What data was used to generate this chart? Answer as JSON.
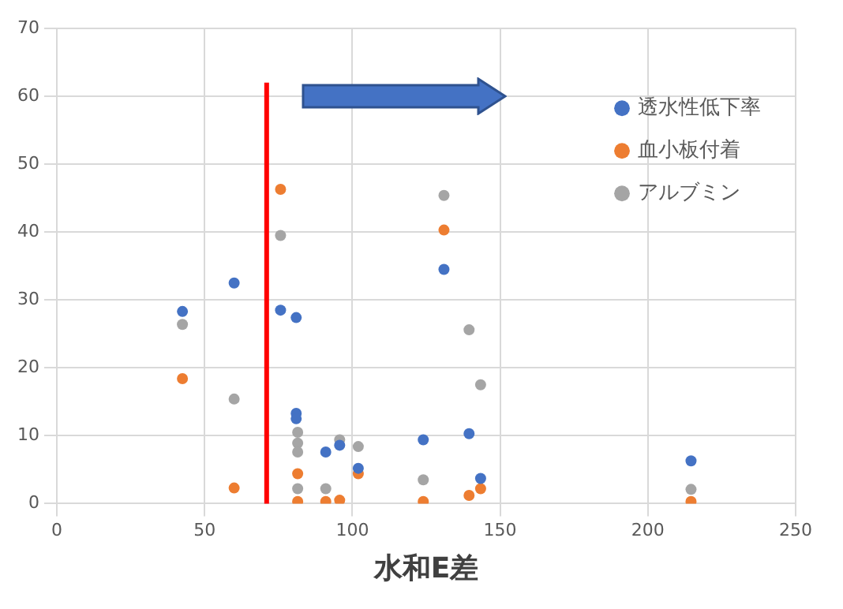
{
  "chart_data": {
    "type": "scatter",
    "xlabel": "水和E差",
    "xlim": [
      0,
      250
    ],
    "xticks": [
      0,
      50,
      100,
      150,
      200,
      250
    ],
    "ylim": [
      0,
      70
    ],
    "yticks": [
      0,
      10,
      20,
      30,
      40,
      50,
      60,
      70
    ],
    "grid": true,
    "legend": "top right",
    "marker": "circle",
    "ref_lines": [
      {
        "axis": "x",
        "value": 71,
        "color": "#ff0000"
      }
    ],
    "series": [
      {
        "name": "透水性低下率",
        "color": "#4472c4",
        "x": [
          42.5,
          60,
          75.7,
          81,
          81,
          81,
          91,
          95.7,
          102,
          124,
          131,
          139.5,
          143.4,
          214.6
        ],
        "values": [
          28.3,
          32.5,
          28.5,
          27.4,
          13.3,
          12.5,
          7.6,
          8.6,
          5.2,
          9.4,
          34.5,
          10.3,
          3.7,
          6.3
        ]
      },
      {
        "name": "血小板付着",
        "color": "#ed7d31",
        "x": [
          42.5,
          60,
          75.7,
          81.5,
          81.5,
          91,
          95.7,
          102,
          124,
          131,
          139.5,
          143.4,
          214.6
        ],
        "values": [
          18.4,
          2.3,
          46.3,
          4.4,
          0.3,
          0.3,
          0.5,
          4.4,
          0.3,
          40.3,
          1.2,
          2.2,
          0.3
        ]
      },
      {
        "name": "アルブミン",
        "color": "#a5a5a5",
        "x": [
          42.5,
          60,
          75.7,
          81.5,
          81.5,
          81.5,
          81.5,
          91,
          95.7,
          102,
          124,
          131,
          139.5,
          143.4,
          214.6
        ],
        "values": [
          26.4,
          15.4,
          39.5,
          10.5,
          8.9,
          7.6,
          2.2,
          2.2,
          9.4,
          8.4,
          3.5,
          45.4,
          25.6,
          17.5,
          2.1
        ]
      }
    ]
  }
}
